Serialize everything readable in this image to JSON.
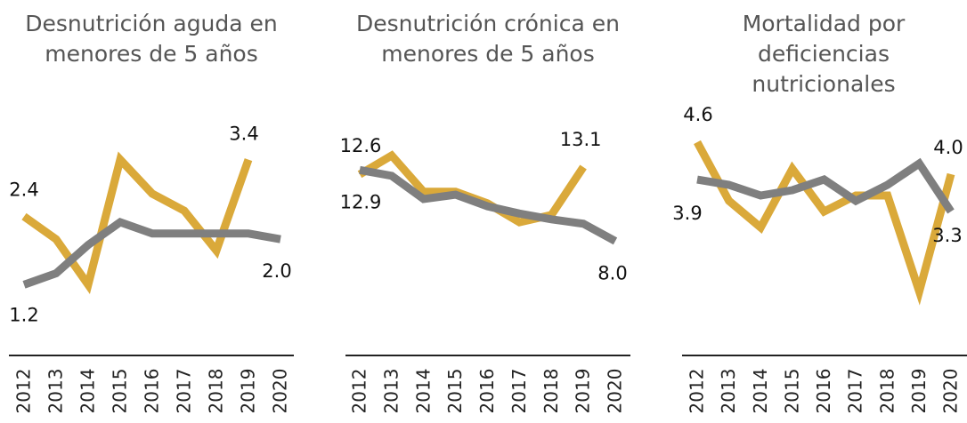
{
  "chart_data": [
    {
      "type": "line",
      "title": "Desnutrición aguda en menores de 5 años",
      "categories": [
        "2012",
        "2013",
        "2014",
        "2015",
        "2016",
        "2017",
        "2018",
        "2019",
        "2020"
      ],
      "ylim": [
        0.8,
        3.8
      ],
      "series": [
        {
          "color": "#daa93a",
          "values": [
            2.4,
            2.0,
            1.2,
            3.4,
            2.8,
            2.5,
            1.8,
            3.4,
            null
          ],
          "value_labels": [
            "2.4",
            null,
            null,
            null,
            null,
            null,
            null,
            "3.4",
            null
          ]
        },
        {
          "color": "#7f7f7f",
          "values": [
            1.2,
            1.4,
            1.9,
            2.3,
            2.1,
            2.1,
            2.1,
            2.1,
            2.0
          ],
          "value_labels": [
            "1.2",
            null,
            null,
            null,
            null,
            null,
            null,
            null,
            "2.0"
          ]
        }
      ]
    },
    {
      "type": "line",
      "title": "Desnutrición crónica en menores de 5 años",
      "categories": [
        "2012",
        "2013",
        "2014",
        "2015",
        "2016",
        "2017",
        "2018",
        "2019",
        "2020"
      ],
      "ylim": [
        6,
        15
      ],
      "series": [
        {
          "color": "#daa93a",
          "values": [
            12.6,
            13.9,
            11.4,
            11.4,
            10.6,
            9.3,
            9.8,
            13.1,
            null
          ],
          "value_labels": [
            "12.6",
            null,
            null,
            null,
            null,
            null,
            null,
            "13.1",
            null
          ]
        },
        {
          "color": "#7f7f7f",
          "values": [
            12.9,
            12.5,
            10.9,
            11.2,
            10.4,
            9.9,
            9.5,
            9.2,
            8.0
          ],
          "value_labels": [
            "12.9",
            null,
            null,
            null,
            null,
            null,
            null,
            null,
            "8.0"
          ]
        }
      ]
    },
    {
      "type": "line",
      "title": "Mortalidad por deficiencias nutricionales",
      "categories": [
        "2012",
        "2013",
        "2014",
        "2015",
        "2016",
        "2017",
        "2018",
        "2019",
        "2020"
      ],
      "ylim": [
        1.5,
        5
      ],
      "series": [
        {
          "color": "#daa93a",
          "values": [
            4.6,
            3.5,
            3.0,
            4.1,
            3.3,
            3.6,
            3.6,
            1.8,
            4.0
          ],
          "value_labels": [
            "4.6",
            null,
            null,
            null,
            null,
            null,
            null,
            null,
            "4.0"
          ]
        },
        {
          "color": "#7f7f7f",
          "values": [
            3.9,
            3.8,
            3.6,
            3.7,
            3.9,
            3.5,
            3.8,
            4.2,
            3.3
          ],
          "value_labels": [
            "3.9",
            null,
            null,
            null,
            null,
            null,
            null,
            null,
            "3.3"
          ]
        }
      ]
    }
  ]
}
